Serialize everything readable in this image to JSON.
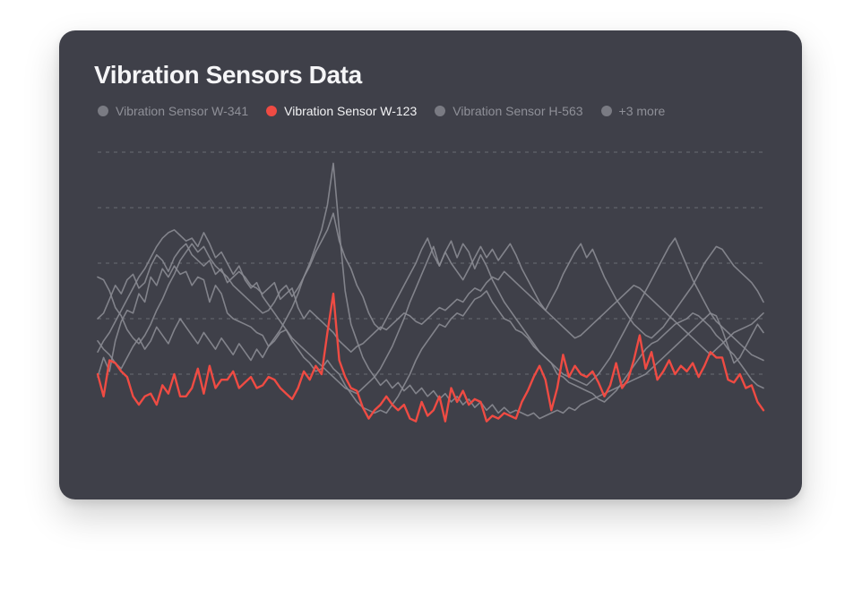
{
  "title": "Vibration Sensors Data",
  "legend": {
    "items": [
      {
        "label": "Vibration Sensor W-341",
        "active": false
      },
      {
        "label": "Vibration Sensor W-123",
        "active": true
      },
      {
        "label": "Vibration Sensor H-563",
        "active": false
      },
      {
        "label": "+3 more",
        "active": false
      }
    ]
  },
  "colors": {
    "background": "#3f4049",
    "highlight": "#ef4b43",
    "muted_series": "#8a8b92",
    "grid": "#6a6b74"
  },
  "chart_data": {
    "type": "line",
    "ylim": [
      0,
      5
    ],
    "grid": "horizontal dashed",
    "legend_position": "top-left",
    "highlighted_series": "Vibration Sensor W-123",
    "series": [
      {
        "name": "Vibration Sensor W-123",
        "highlight": true,
        "values": [
          1.0,
          0.6,
          1.25,
          1.2,
          1.05,
          0.95,
          0.6,
          0.45,
          0.6,
          0.65,
          0.45,
          0.8,
          0.65,
          1.0,
          0.6,
          0.6,
          0.75,
          1.1,
          0.65,
          1.15,
          0.75,
          0.9,
          0.9,
          1.05,
          0.75,
          0.85,
          0.95,
          0.75,
          0.8,
          0.95,
          0.9,
          0.75,
          0.65,
          0.55,
          0.75,
          1.05,
          0.9,
          1.15,
          1.0,
          1.75,
          2.45,
          1.25,
          0.95,
          0.75,
          0.7,
          0.4,
          0.2,
          0.35,
          0.45,
          0.6,
          0.45,
          0.35,
          0.45,
          0.2,
          0.15,
          0.5,
          0.25,
          0.35,
          0.6,
          0.15,
          0.75,
          0.5,
          0.7,
          0.45,
          0.55,
          0.5,
          0.15,
          0.25,
          0.2,
          0.3,
          0.25,
          0.2,
          0.5,
          0.7,
          0.95,
          1.15,
          0.9,
          0.35,
          0.75,
          1.35,
          0.95,
          1.15,
          1.0,
          0.95,
          1.05,
          0.85,
          0.6,
          0.8,
          1.2,
          0.75,
          0.9,
          1.25,
          1.7,
          1.1,
          1.4,
          0.9,
          1.05,
          1.25,
          1.0,
          1.15,
          1.05,
          1.2,
          0.95,
          1.15,
          1.4,
          1.3,
          1.3,
          0.9,
          0.85,
          1.0,
          0.75,
          0.8,
          0.5,
          0.35
        ]
      },
      {
        "name": "",
        "values": [
          0.95,
          1.3,
          1.05,
          1.6,
          1.95,
          2.15,
          2.1,
          2.45,
          2.3,
          2.75,
          2.6,
          2.9,
          2.75,
          2.95,
          2.8,
          2.85,
          2.6,
          2.75,
          2.7,
          2.3,
          2.6,
          2.45,
          2.1,
          2.0,
          1.95,
          1.9,
          1.85,
          1.75,
          1.7,
          1.5,
          1.6,
          1.75,
          1.8,
          1.6,
          1.45,
          1.3,
          1.2,
          1.05,
          1.1,
          1.25,
          1.1,
          1.0,
          0.8,
          0.65,
          0.5,
          0.4,
          0.35,
          0.3,
          0.35,
          0.3,
          0.45,
          0.6,
          0.8,
          1.0,
          1.25,
          1.45,
          1.6,
          1.75,
          1.9,
          1.85,
          2.0,
          2.1,
          2.05,
          2.2,
          2.35,
          2.4,
          2.5,
          2.3,
          2.15,
          2.0,
          1.95,
          1.8,
          1.75,
          1.65,
          1.5,
          1.4,
          1.3,
          1.2,
          1.0,
          0.95,
          0.85,
          0.8,
          0.75,
          0.7,
          0.65,
          0.55,
          0.5,
          0.6,
          0.7,
          0.85,
          1.0,
          1.15,
          1.3,
          1.45,
          1.55,
          1.6,
          1.7,
          1.8,
          1.9,
          1.95,
          2.0,
          2.1,
          2.05,
          1.95,
          1.85,
          1.7,
          1.6,
          1.45,
          1.35,
          1.2,
          1.05,
          0.9,
          0.8,
          0.75
        ]
      },
      {
        "name": "",
        "values": [
          2.0,
          2.1,
          2.35,
          2.6,
          2.45,
          2.7,
          2.8,
          2.55,
          2.65,
          2.95,
          3.15,
          3.05,
          2.85,
          3.1,
          3.25,
          3.35,
          3.15,
          3.05,
          2.95,
          3.05,
          2.8,
          2.9,
          2.65,
          2.75,
          2.85,
          2.75,
          2.6,
          2.55,
          2.45,
          2.55,
          2.65,
          2.35,
          2.45,
          2.55,
          2.2,
          2.0,
          2.15,
          2.05,
          1.95,
          1.85,
          1.75,
          1.6,
          1.5,
          1.4,
          1.5,
          1.55,
          1.65,
          1.75,
          1.85,
          1.8,
          1.9,
          2.0,
          2.1,
          2.05,
          1.95,
          1.9,
          2.0,
          2.1,
          2.2,
          2.15,
          2.25,
          2.35,
          2.3,
          2.45,
          2.55,
          2.5,
          2.65,
          2.75,
          2.7,
          2.85,
          2.75,
          2.65,
          2.55,
          2.45,
          2.35,
          2.25,
          2.15,
          2.05,
          1.95,
          1.85,
          1.75,
          1.65,
          1.7,
          1.8,
          1.9,
          2.0,
          2.1,
          2.2,
          2.3,
          2.4,
          2.5,
          2.6,
          2.55,
          2.45,
          2.35,
          2.25,
          2.15,
          2.05,
          1.95,
          1.85,
          1.75,
          1.65,
          1.55,
          1.45,
          1.35,
          1.45,
          1.55,
          1.65,
          1.75,
          1.8,
          1.85,
          1.9,
          2.0,
          2.1
        ]
      },
      {
        "name": "",
        "values": [
          1.6,
          1.45,
          1.35,
          1.2,
          1.1,
          1.3,
          1.5,
          1.65,
          1.45,
          1.6,
          1.85,
          1.7,
          1.55,
          1.8,
          2.0,
          1.85,
          1.7,
          1.55,
          1.75,
          1.6,
          1.45,
          1.65,
          1.5,
          1.35,
          1.55,
          1.4,
          1.25,
          1.45,
          1.3,
          1.5,
          1.65,
          1.8,
          2.0,
          2.2,
          2.45,
          2.75,
          3.0,
          3.3,
          3.6,
          4.05,
          4.8,
          3.6,
          2.5,
          1.9,
          1.6,
          1.3,
          1.1,
          0.95,
          0.8,
          0.9,
          0.75,
          0.85,
          0.7,
          0.8,
          0.65,
          0.75,
          0.6,
          0.7,
          0.55,
          0.65,
          0.5,
          0.6,
          0.45,
          0.55,
          0.4,
          0.5,
          0.35,
          0.45,
          0.3,
          0.4,
          0.3,
          0.35,
          0.3,
          0.25,
          0.3,
          0.2,
          0.25,
          0.3,
          0.35,
          0.3,
          0.4,
          0.35,
          0.45,
          0.5,
          0.55,
          0.6,
          0.65,
          0.7,
          0.75,
          0.8,
          0.85,
          0.9,
          0.95,
          1.0,
          1.1,
          1.2,
          1.3,
          1.4,
          1.5,
          1.6,
          1.7,
          1.8,
          1.9,
          2.0,
          2.1,
          2.05,
          1.8,
          1.5,
          1.2,
          1.3,
          1.5,
          1.7,
          1.9,
          1.75
        ]
      },
      {
        "name": "",
        "values": [
          1.4,
          1.6,
          1.75,
          1.95,
          2.15,
          2.35,
          2.55,
          2.75,
          2.9,
          3.1,
          3.3,
          3.45,
          3.55,
          3.6,
          3.5,
          3.4,
          3.45,
          3.3,
          3.55,
          3.35,
          3.1,
          3.2,
          3.0,
          2.8,
          2.95,
          2.7,
          2.55,
          2.65,
          2.4,
          2.25,
          2.1,
          1.95,
          1.8,
          1.65,
          1.55,
          1.45,
          1.35,
          1.25,
          1.15,
          1.05,
          0.95,
          0.85,
          0.75,
          0.7,
          0.65,
          0.75,
          0.85,
          0.95,
          1.1,
          1.3,
          1.5,
          1.75,
          2.0,
          2.3,
          2.55,
          2.8,
          3.05,
          3.3,
          2.95,
          3.2,
          3.4,
          3.1,
          3.35,
          3.2,
          2.9,
          3.15,
          2.95,
          2.7,
          2.5,
          2.3,
          2.15,
          2.0,
          1.85,
          1.7,
          1.55,
          1.4,
          1.3,
          1.2,
          1.1,
          1.0,
          0.95,
          0.9,
          0.85,
          0.8,
          0.9,
          1.0,
          1.15,
          1.3,
          1.5,
          1.7,
          1.9,
          2.1,
          2.3,
          2.5,
          2.7,
          2.9,
          3.1,
          3.3,
          3.45,
          3.2,
          2.95,
          2.7,
          2.5,
          2.3,
          2.1,
          1.95,
          1.85,
          1.75,
          1.65,
          1.55,
          1.45,
          1.35,
          1.3,
          1.25
        ]
      },
      {
        "name": "",
        "values": [
          2.75,
          2.7,
          2.5,
          2.2,
          2.05,
          1.8,
          1.65,
          1.55,
          1.7,
          1.9,
          2.15,
          2.35,
          2.6,
          2.8,
          3.05,
          3.2,
          3.35,
          3.2,
          3.3,
          3.1,
          2.95,
          2.85,
          2.75,
          2.6,
          2.5,
          2.4,
          2.3,
          2.2,
          2.1,
          2.15,
          2.3,
          2.5,
          2.6,
          2.4,
          2.55,
          2.75,
          2.95,
          3.2,
          3.4,
          3.6,
          3.9,
          3.4,
          3.1,
          2.9,
          2.6,
          2.4,
          2.1,
          1.9,
          1.8,
          2.0,
          2.2,
          2.4,
          2.6,
          2.8,
          3.0,
          3.25,
          3.45,
          3.15,
          2.95,
          3.2,
          3.0,
          2.85,
          2.7,
          2.9,
          3.1,
          3.3,
          3.1,
          3.25,
          3.05,
          3.2,
          3.35,
          3.15,
          2.9,
          2.7,
          2.5,
          2.3,
          2.15,
          2.35,
          2.55,
          2.8,
          3.0,
          3.2,
          3.35,
          3.1,
          3.25,
          3.0,
          2.75,
          2.55,
          2.35,
          2.2,
          2.05,
          1.9,
          1.8,
          1.7,
          1.65,
          1.75,
          1.85,
          2.0,
          2.15,
          2.3,
          2.45,
          2.6,
          2.8,
          3.0,
          3.15,
          3.3,
          3.25,
          3.1,
          2.95,
          2.85,
          2.75,
          2.65,
          2.5,
          2.3
        ]
      }
    ]
  }
}
